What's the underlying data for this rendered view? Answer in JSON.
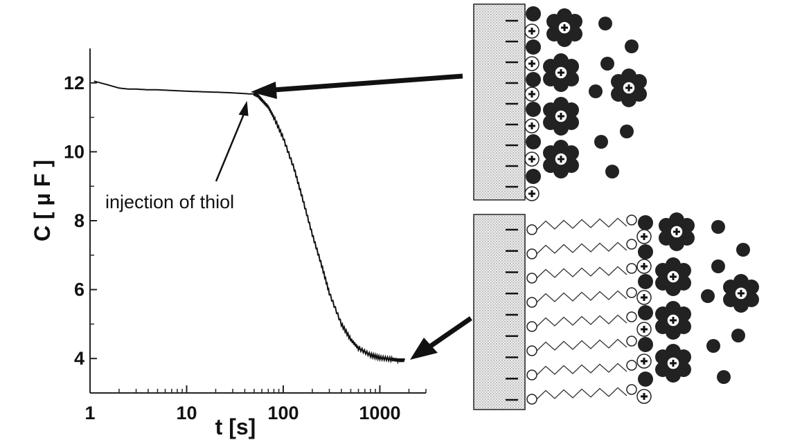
{
  "chart_data": {
    "type": "line",
    "title": "",
    "xlabel": "t [s]",
    "ylabel": "C [ µ F ]",
    "x_scale": "log",
    "xlim": [
      1,
      3000
    ],
    "ylim": [
      3,
      13
    ],
    "x_ticks": [
      1,
      10,
      100,
      1000
    ],
    "x_tick_labels": [
      "1",
      "10",
      "100",
      "1000"
    ],
    "y_ticks": [
      4,
      6,
      8,
      10,
      12
    ],
    "y_tick_labels": [
      "4",
      "6",
      "8",
      "10",
      "12"
    ],
    "grid": false,
    "series": [
      {
        "x": [
          1.1,
          1.5,
          2,
          2.5,
          3,
          4,
          5,
          7,
          10,
          15,
          20,
          30,
          45,
          50,
          55,
          60,
          70,
          80,
          100,
          130,
          160,
          200,
          250,
          300,
          400,
          500,
          600,
          800,
          1000,
          1300,
          1600,
          1800
        ],
        "y": [
          12.05,
          11.95,
          11.85,
          11.82,
          11.82,
          11.8,
          11.8,
          11.78,
          11.76,
          11.74,
          11.73,
          11.71,
          11.68,
          11.68,
          11.62,
          11.5,
          11.3,
          11.0,
          10.4,
          9.5,
          8.6,
          7.6,
          6.7,
          5.9,
          5.0,
          4.55,
          4.3,
          4.1,
          4.02,
          3.98,
          3.95,
          3.95
        ]
      }
    ],
    "annotations": [
      {
        "text": "injection of thiol",
        "points_to": [
          45,
          11.68
        ]
      }
    ]
  }
}
